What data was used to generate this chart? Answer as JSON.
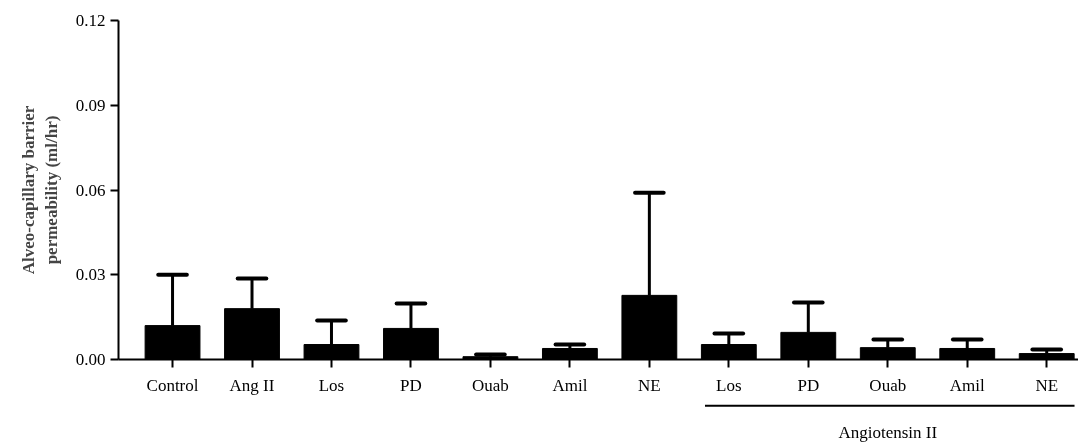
{
  "chart_data": {
    "type": "bar",
    "ylabel": "Alveo-capillary barrier permeability (ml/hr)",
    "categories": [
      "Control",
      "Ang II",
      "Los",
      "PD",
      "Ouab",
      "Amil",
      "NE",
      "Los",
      "PD",
      "Ouab",
      "Amil",
      "NE"
    ],
    "values": [
      0.012,
      0.018,
      0.0053,
      0.011,
      0.001,
      0.0039,
      0.0227,
      0.0053,
      0.0096,
      0.0042,
      0.0039,
      0.0021
    ],
    "errors": [
      [
        0.012,
        0.03
      ],
      [
        0.018,
        0.0287
      ],
      [
        0.0053,
        0.0138
      ],
      [
        0.011,
        0.0198
      ],
      [
        0.001,
        0.0018
      ],
      [
        0.0039,
        0.0053
      ],
      [
        0.0227,
        0.059
      ],
      [
        0.0053,
        0.0092
      ],
      [
        0.0096,
        0.0202
      ],
      [
        0.0042,
        0.0071
      ],
      [
        0.0039,
        0.0071
      ],
      [
        0.0021,
        0.0035
      ]
    ],
    "color": "#000000",
    "ylim": [
      0,
      0.12
    ],
    "yticks": [
      {
        "value": 0,
        "label": "0.00"
      },
      {
        "value": 0.03,
        "label": "0.03"
      },
      {
        "value": 0.06,
        "label": "0.06"
      },
      {
        "value": 0.09,
        "label": "0.09"
      },
      {
        "value": 0.12,
        "label": "0.12"
      }
    ],
    "grid": false,
    "annotations": [
      "Angiotensin II"
    ]
  }
}
